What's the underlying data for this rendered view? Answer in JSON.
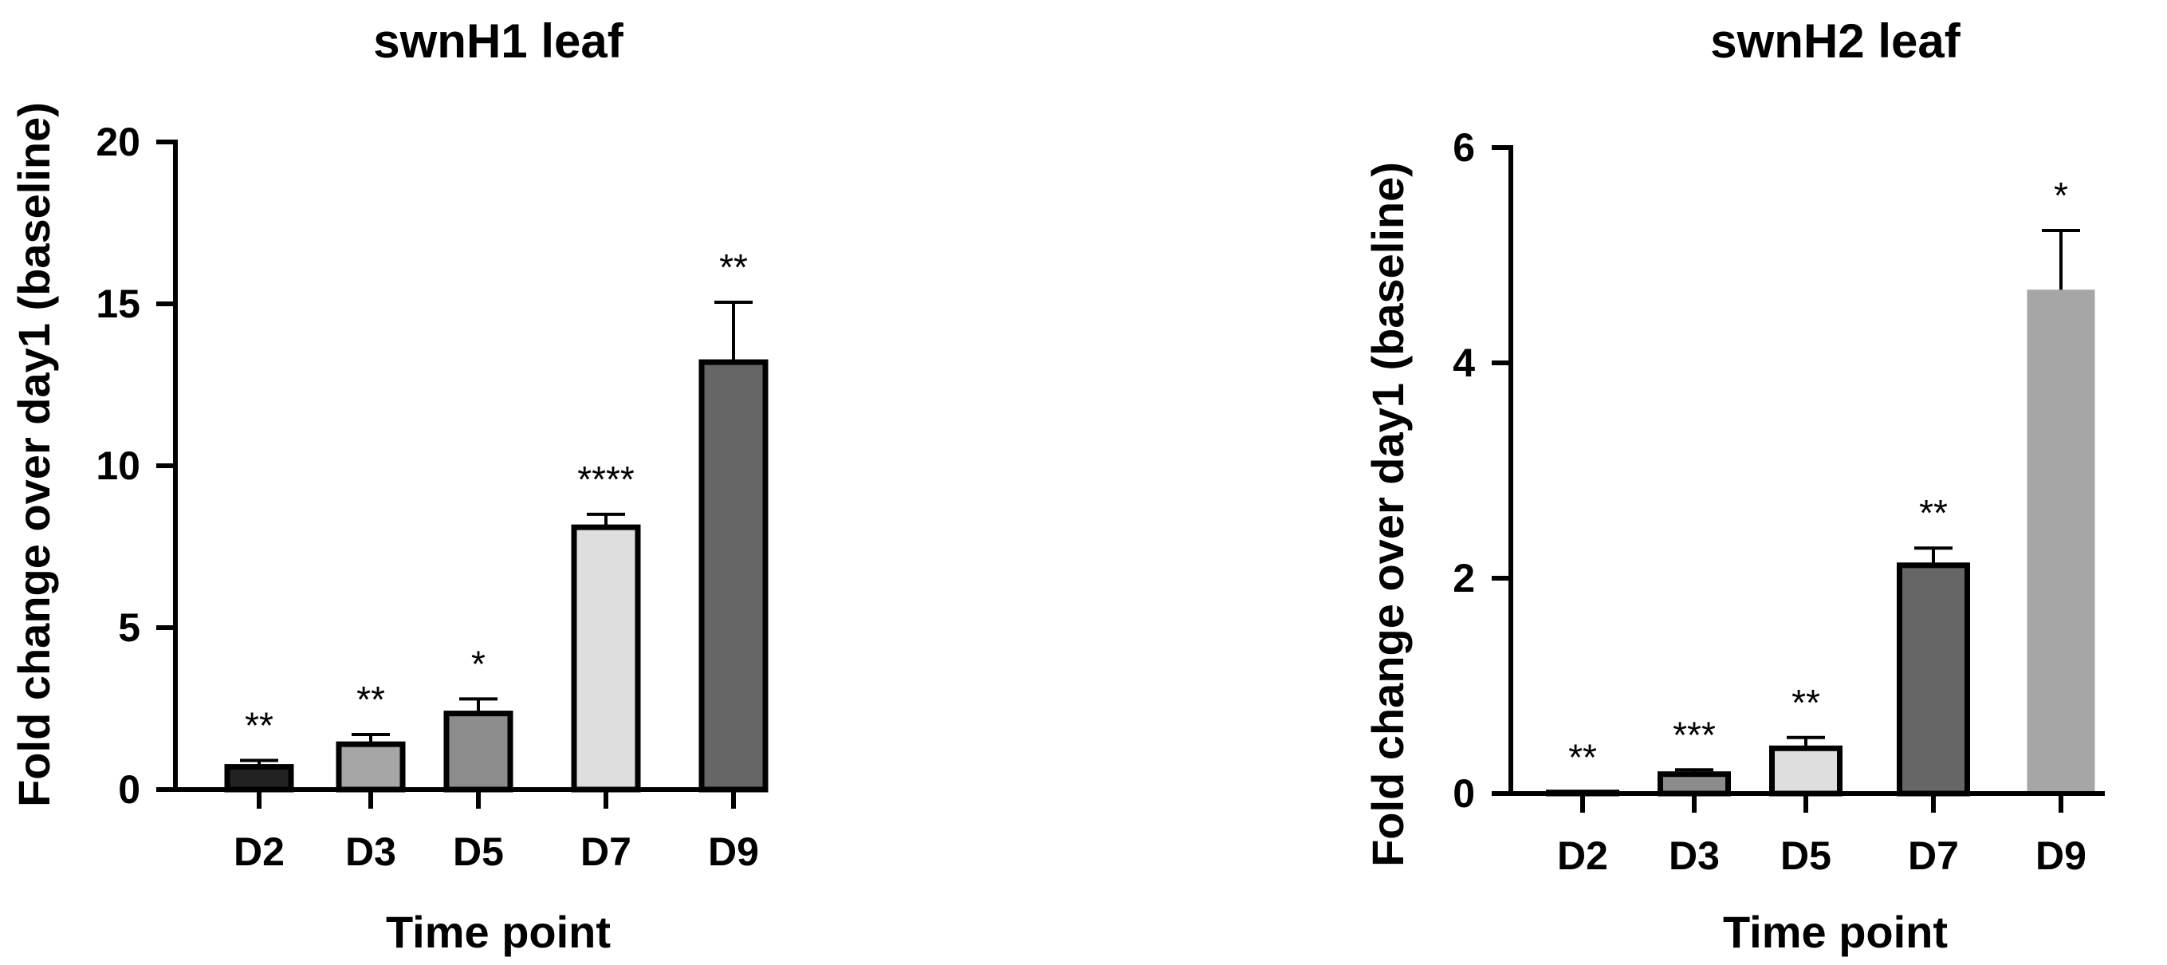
{
  "chart_data": [
    {
      "type": "bar",
      "title": "swnH1 leaf",
      "xlabel": "Time point",
      "ylabel": "Fold change over day1 (baseline)",
      "categories": [
        "D2",
        "D3",
        "D5",
        "D7",
        "D9"
      ],
      "values": [
        0.7,
        1.4,
        2.35,
        8.1,
        13.2
      ],
      "error": [
        0.2,
        0.3,
        0.45,
        0.4,
        1.85
      ],
      "significance": [
        "**",
        "**",
        "*",
        "****",
        "**"
      ],
      "colors": [
        "#222222",
        "#a6a6a6",
        "#8c8c8c",
        "#dedede",
        "#666666"
      ],
      "outlined": [
        true,
        true,
        true,
        true,
        true
      ],
      "ylim": [
        0,
        20
      ],
      "yticks": [
        0,
        5,
        10,
        15,
        20
      ],
      "grid": false
    },
    {
      "type": "bar",
      "title": "swnH2 leaf",
      "xlabel": "Time point",
      "ylabel": "Fold change over day1 (baseline)",
      "categories": [
        "D2",
        "D3",
        "D5",
        "D7",
        "D9"
      ],
      "values": [
        0.01,
        0.18,
        0.42,
        2.12,
        4.68
      ],
      "error": [
        0.0,
        0.04,
        0.1,
        0.16,
        0.55
      ],
      "significance": [
        "**",
        "***",
        "**",
        "**",
        "*"
      ],
      "colors": [
        "#222222",
        "#8c8c8c",
        "#dedede",
        "#666666",
        "#a6a6a6"
      ],
      "outlined": [
        true,
        true,
        true,
        true,
        false
      ],
      "ylim": [
        0,
        6
      ],
      "yticks": [
        0,
        2,
        4,
        6
      ],
      "grid": false
    }
  ]
}
